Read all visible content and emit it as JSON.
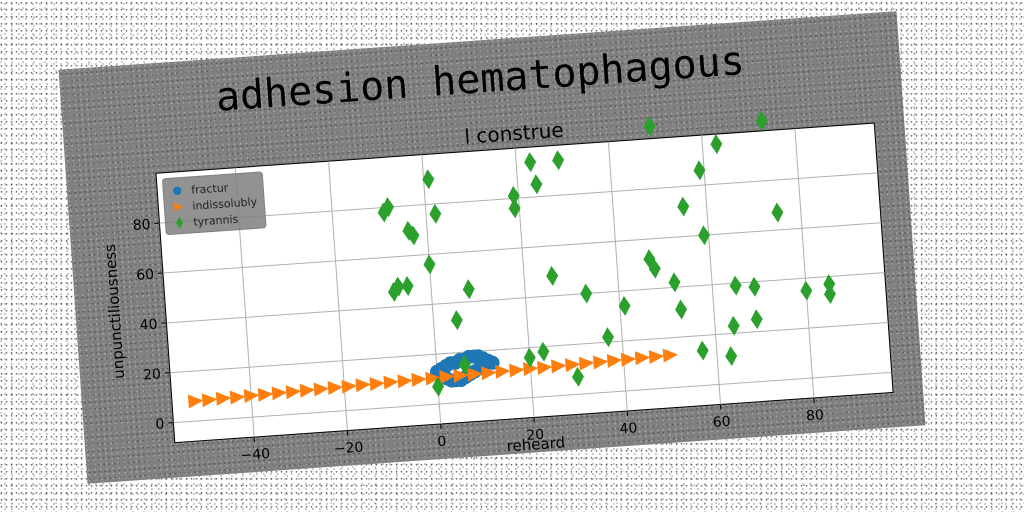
{
  "figure": {
    "title": "adhesion hematophagous",
    "background": "#808080"
  },
  "chart_data": {
    "type": "scatter",
    "title": "l construe",
    "xlabel": "reheard",
    "ylabel": "unpunctiliousness",
    "xlim": [
      -57,
      97
    ],
    "ylim": [
      -8,
      100
    ],
    "xticks": [
      -40,
      -20,
      0,
      20,
      40,
      60,
      80
    ],
    "yticks": [
      0,
      20,
      40,
      60,
      80
    ],
    "grid": true,
    "legend_position": "upper-left",
    "series": [
      {
        "name": "fractur",
        "marker": "circle",
        "color": "#1f77b4",
        "points": [
          [
            0,
            13
          ],
          [
            1,
            14
          ],
          [
            2,
            15
          ],
          [
            3,
            16
          ],
          [
            4,
            16
          ],
          [
            5,
            17
          ],
          [
            6,
            17
          ],
          [
            7,
            18
          ],
          [
            8,
            18
          ],
          [
            9,
            18
          ],
          [
            10,
            17
          ],
          [
            11,
            16
          ],
          [
            1,
            11
          ],
          [
            2,
            10
          ],
          [
            3,
            9
          ],
          [
            4,
            9
          ],
          [
            5,
            9
          ],
          [
            6,
            10
          ],
          [
            7,
            11
          ],
          [
            8,
            12
          ],
          [
            9,
            13
          ],
          [
            10,
            14
          ],
          [
            11,
            15
          ],
          [
            12,
            15
          ]
        ]
      },
      {
        "name": "indissolubly",
        "marker": "triangle-right",
        "color": "#ff7f0e",
        "points": [
          [
            -52,
            8
          ],
          [
            -49,
            8.1
          ],
          [
            -46,
            8.3
          ],
          [
            -43,
            8.4
          ],
          [
            -40,
            8.6
          ],
          [
            -37,
            8.7
          ],
          [
            -34,
            8.9
          ],
          [
            -31,
            9
          ],
          [
            -28,
            9.2
          ],
          [
            -25,
            9.3
          ],
          [
            -22,
            9.5
          ],
          [
            -19,
            9.6
          ],
          [
            -16,
            9.8
          ],
          [
            -13,
            9.9
          ],
          [
            -10,
            10.1
          ],
          [
            -7,
            10.2
          ],
          [
            -4,
            10.4
          ],
          [
            -1,
            10.5
          ],
          [
            2,
            10.7
          ],
          [
            5,
            10.8
          ],
          [
            8,
            11
          ],
          [
            11,
            11.1
          ],
          [
            14,
            11.3
          ],
          [
            17,
            11.4
          ],
          [
            20,
            11.6
          ],
          [
            23,
            11.7
          ],
          [
            26,
            11.9
          ],
          [
            29,
            12
          ],
          [
            32,
            12.2
          ],
          [
            35,
            12.3
          ],
          [
            38,
            12.5
          ],
          [
            41,
            12.6
          ],
          [
            44,
            12.8
          ],
          [
            47,
            12.9
          ],
          [
            50,
            13.1
          ]
        ]
      },
      {
        "name": "tyrannis",
        "marker": "diamond",
        "color": "#2ca02c",
        "points": [
          [
            -9,
            78
          ],
          [
            -8,
            80
          ],
          [
            -8,
            46
          ],
          [
            -7,
            48
          ],
          [
            -5,
            48
          ],
          [
            -4,
            70
          ],
          [
            -3,
            68
          ],
          [
            0,
            56
          ],
          [
            0,
            7
          ],
          [
            1,
            90
          ],
          [
            2,
            76
          ],
          [
            5,
            33
          ],
          [
            6,
            15
          ],
          [
            8,
            45
          ],
          [
            19,
            76
          ],
          [
            19,
            81
          ],
          [
            20,
            16
          ],
          [
            23,
            94
          ],
          [
            23,
            18
          ],
          [
            24,
            85
          ],
          [
            26,
            48
          ],
          [
            29,
            94
          ],
          [
            30,
            7
          ],
          [
            33,
            40
          ],
          [
            37,
            22
          ],
          [
            41,
            34
          ],
          [
            47,
            52
          ],
          [
            48,
            48
          ],
          [
            49,
            105
          ],
          [
            52,
            42
          ],
          [
            53,
            31
          ],
          [
            55,
            72
          ],
          [
            57,
            14
          ],
          [
            59,
            60
          ],
          [
            59,
            86
          ],
          [
            63,
            11
          ],
          [
            63,
            96
          ],
          [
            64,
            23
          ],
          [
            65,
            39
          ],
          [
            69,
            25
          ],
          [
            69,
            38
          ],
          [
            73,
            104
          ],
          [
            75,
            67
          ],
          [
            80,
            35
          ],
          [
            85,
            37
          ],
          [
            85,
            33
          ]
        ]
      }
    ]
  }
}
